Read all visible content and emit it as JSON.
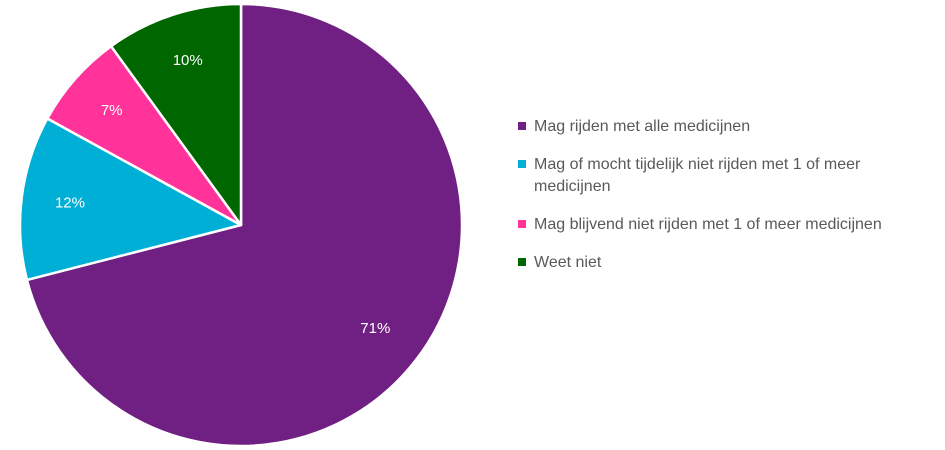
{
  "chart_data": {
    "type": "pie",
    "title": "",
    "start_angle_deg": 0,
    "direction": "clockwise",
    "slices": [
      {
        "label": "Mag rijden met alle medicijnen",
        "value": 71,
        "display": "71%",
        "color": "#702082"
      },
      {
        "label": "Mag of mocht tijdelijk niet rijden met 1 of meer medicijnen",
        "value": 12,
        "display": "12%",
        "color": "#00AFD5"
      },
      {
        "label": "Mag blijvend niet rijden met 1 of meer medicijnen",
        "value": 7,
        "display": "7%",
        "color": "#FF3399"
      },
      {
        "label": "Weet niet",
        "value": 10,
        "display": "10%",
        "color": "#006600"
      }
    ],
    "legend_position": "right"
  }
}
